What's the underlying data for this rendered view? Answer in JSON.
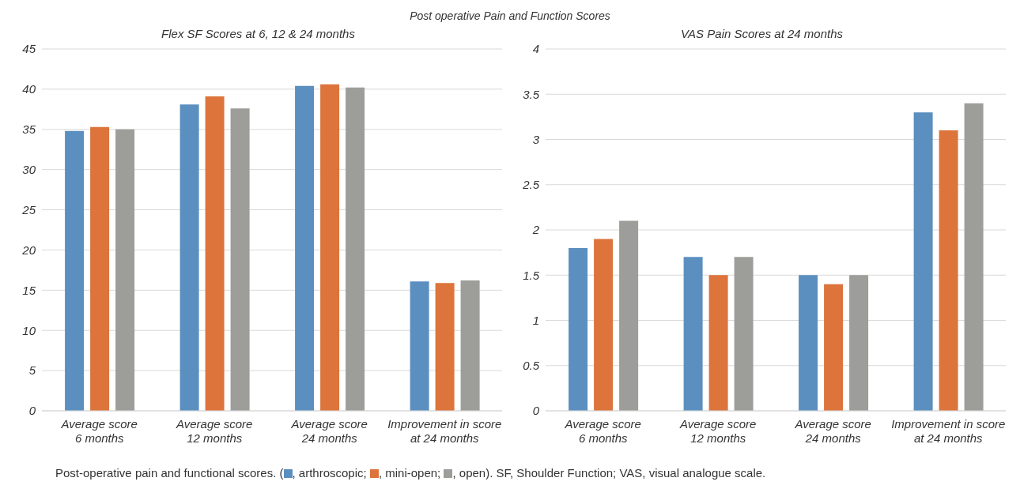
{
  "chart_data": [
    {
      "type": "bar",
      "title": "Flex SF Scores at 6, 12 & 24 months",
      "categories": [
        "Average score\n6 months",
        "Average score\n12 months",
        "Average score\n24 months",
        "Improvement in score\nat 24 months"
      ],
      "series": [
        {
          "name": "arthroscopic",
          "color": "#5b8fbf",
          "values": [
            34.8,
            38.1,
            40.4,
            16.1
          ]
        },
        {
          "name": "mini-open",
          "color": "#dc743c",
          "values": [
            35.3,
            39.1,
            40.6,
            15.9
          ]
        },
        {
          "name": "open",
          "color": "#9d9d99",
          "values": [
            35.0,
            37.6,
            40.2,
            16.2
          ]
        }
      ],
      "ylim": [
        0,
        45
      ],
      "yticks": [
        0,
        5,
        10,
        15,
        20,
        25,
        30,
        35,
        40,
        45
      ],
      "grid": "y",
      "legend": "bottom",
      "annotations": [
        "Post operative Pain and Function Scores",
        "Post-operative pain and functional scores. (",
        ", ",
        "; ",
        "). SF, Shoulder Function; VAS, visual analogue scale."
      ]
    },
    {
      "type": "bar",
      "title": "VAS Pain Scores at 24 months",
      "categories": [
        "Average score\n6 months",
        "Average score\n12 months",
        "Average score\n24 months",
        "Improvement in score\nat 24 months"
      ],
      "series": [
        {
          "color": "#5b8fbf",
          "values": [
            1.8,
            1.7,
            1.5,
            3.3
          ]
        },
        {
          "color": "#dc743c",
          "values": [
            1.9,
            1.5,
            1.4,
            3.1
          ]
        },
        {
          "color": "#9d9d99",
          "values": [
            2.1,
            1.7,
            1.5,
            3.4
          ]
        }
      ],
      "ylim": [
        0,
        4
      ],
      "yticks": [
        0,
        0.5,
        1,
        1.5,
        2,
        2.5,
        3,
        3.5,
        4
      ],
      "grid": "y"
    }
  ]
}
